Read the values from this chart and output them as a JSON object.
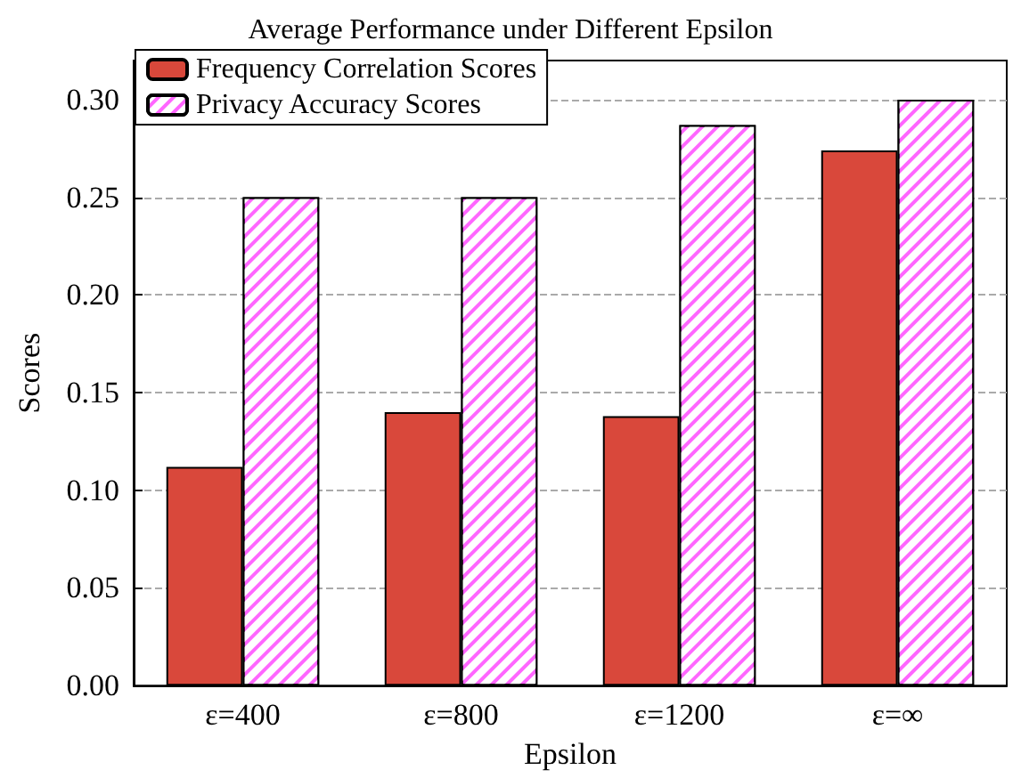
{
  "chart_data": {
    "type": "bar",
    "title": "Average Performance under Different Epsilon",
    "xlabel": "Epsilon",
    "ylabel": "Scores",
    "categories": [
      "ε=400",
      "ε=800",
      "ε=1200",
      "ε=∞"
    ],
    "series": [
      {
        "name": "Frequency Correlation Scores",
        "color": "#d9483b",
        "values": [
          0.112,
          0.14,
          0.138,
          0.274
        ]
      },
      {
        "name": "Privacy Accuracy Scores",
        "color": "#ff66ff",
        "values": [
          0.25,
          0.25,
          0.287,
          0.3
        ]
      }
    ],
    "ylim": [
      0,
      0.32
    ],
    "yticks": [
      {
        "value": 0,
        "label": "0.00"
      },
      {
        "value": 0.05,
        "label": "0.05"
      },
      {
        "value": 0.1,
        "label": "0.10"
      },
      {
        "value": 0.15,
        "label": "0.15"
      },
      {
        "value": 0.2,
        "label": "0.20"
      },
      {
        "value": 0.25,
        "label": "0.25"
      },
      {
        "value": 0.3,
        "label": "0.30"
      }
    ],
    "grid": "y",
    "legend": "top left"
  }
}
